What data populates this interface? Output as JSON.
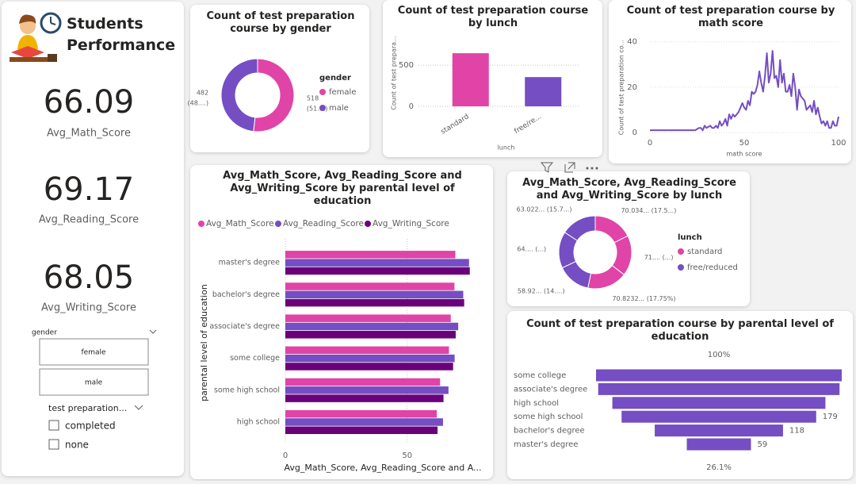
{
  "header": {
    "title": "Students Performance"
  },
  "kpis": [
    {
      "value": 66.09,
      "label": "Avg_Math_Score"
    },
    {
      "value": 69.17,
      "label": "Avg_Reading_Score"
    },
    {
      "value": 68.05,
      "label": "Avg_Writing_Score"
    }
  ],
  "slicers": [
    {
      "title": "gender",
      "options": [
        "female",
        "male"
      ]
    },
    {
      "title": "test preparation...",
      "options": [
        "completed",
        "none"
      ]
    }
  ],
  "chart_data": [
    {
      "type": "donut",
      "title": "Count of test preparation course by gender",
      "legend_title": "gender",
      "categories": [
        "female",
        "male"
      ],
      "values": [
        518,
        482
      ],
      "value_labels": [
        "518 (51....)",
        "482 (48....)"
      ],
      "colors": [
        "#e044a7",
        "#744ec2"
      ],
      "legend": "right"
    },
    {
      "type": "bar",
      "title": "Count of test preparation course by lunch",
      "categories": [
        "standard",
        "free/re..."
      ],
      "values": [
        645,
        355
      ],
      "colors": [
        "#e044a7",
        "#744ec2"
      ],
      "x_label": "lunch",
      "y_label": "Count of test prepara...",
      "ylim": [
        0,
        800
      ],
      "yticks": [
        0,
        500
      ],
      "grid": true
    },
    {
      "type": "line",
      "title": "Count of test preparation course by math score",
      "x_label": "math score",
      "y_label": "Count of test preparation co...",
      "color": "#744ec2",
      "x": [
        0,
        8,
        18,
        19,
        22,
        23,
        24,
        26,
        27,
        28,
        29,
        30,
        32,
        33,
        34,
        35,
        36,
        37,
        38,
        39,
        40,
        41,
        42,
        43,
        44,
        45,
        46,
        47,
        48,
        49,
        50,
        51,
        52,
        53,
        54,
        55,
        56,
        57,
        58,
        59,
        60,
        61,
        62,
        63,
        64,
        65,
        66,
        67,
        68,
        69,
        70,
        71,
        72,
        73,
        74,
        75,
        76,
        77,
        78,
        79,
        80,
        81,
        82,
        83,
        84,
        85,
        86,
        87,
        88,
        89,
        90,
        91,
        92,
        93,
        94,
        95,
        96,
        97,
        98,
        99,
        100
      ],
      "values": [
        1,
        1,
        1,
        1,
        1,
        1,
        1,
        2,
        2,
        1,
        3,
        2,
        3,
        2,
        2,
        3,
        2,
        5,
        3,
        4,
        6,
        3,
        8,
        6,
        8,
        7,
        8,
        9,
        11,
        13,
        11,
        10,
        14,
        12,
        18,
        17,
        18,
        21,
        27,
        22,
        18,
        25,
        35,
        22,
        26,
        36,
        24,
        25,
        20,
        32,
        22,
        26,
        18,
        18,
        21,
        16,
        26,
        20,
        10,
        19,
        16,
        15,
        14,
        10,
        11,
        12,
        9,
        14,
        8,
        11,
        7,
        4,
        5,
        3,
        5,
        2,
        2,
        5,
        3,
        3,
        7
      ],
      "xlim": [
        0,
        100
      ],
      "xticks": [
        0,
        50,
        100
      ],
      "ylim": [
        0,
        42
      ],
      "yticks": [
        0,
        20,
        40
      ],
      "grid": true
    },
    {
      "type": "bar",
      "orientation": "horizontal",
      "title": "Avg_Math_Score, Avg_Reading_Score and Avg_Writing_Score by parental level of education",
      "categories": [
        "master's degree",
        "bachelor's degree",
        "associate's degree",
        "some college",
        "some high school",
        "high school"
      ],
      "series": [
        {
          "name": "Avg_Math_Score",
          "color": "#e044a7",
          "values": [
            69.75,
            69.39,
            67.88,
            67.13,
            63.5,
            62.14
          ]
        },
        {
          "name": "Avg_Reading_Score",
          "color": "#744ec2",
          "values": [
            75.37,
            73.0,
            70.93,
            69.46,
            66.94,
            64.7
          ]
        },
        {
          "name": "Avg_Writing_Score",
          "color": "#6b007b",
          "values": [
            75.68,
            73.38,
            69.9,
            68.84,
            64.89,
            62.45
          ]
        }
      ],
      "x_label": "Avg_Math_Score, Avg_Reading_Score and A...",
      "y_label": "parental level of education",
      "xlim": [
        0,
        80
      ],
      "xticks": [
        0,
        50
      ],
      "grid": true,
      "legend": "top"
    },
    {
      "type": "donut",
      "title": "Avg_Math_Score, Avg_Reading_Score and Avg_Writing_Score by lunch",
      "legend_title": "lunch",
      "series": [
        {
          "name": "standard",
          "color": "#e044a7",
          "values": [
            70.034,
            71.654,
            70.8232
          ],
          "value_labels": [
            "70.034... (17.5...)",
            "71.... (...)",
            "70.8232... (17.75%)"
          ]
        },
        {
          "name": "free/reduced",
          "color": "#744ec2",
          "values": [
            58.921,
            64.654,
            63.022
          ],
          "value_labels": [
            "58.92... (14....)",
            "64.... (...)",
            "63.022... (15.7...)"
          ]
        }
      ],
      "legend": "right"
    },
    {
      "type": "funnel",
      "title": "Count of test preparation course by parental level of education",
      "categories": [
        "some college",
        "associate's degree",
        "high school",
        "some high school",
        "bachelor's degree",
        "master's degree"
      ],
      "values": [
        226,
        222,
        196,
        179,
        118,
        59
      ],
      "value_labels": [
        null,
        null,
        null,
        "179",
        "118",
        "59"
      ],
      "color": "#744ec2",
      "top_label": "100%",
      "bottom_label": "26.1%"
    }
  ]
}
